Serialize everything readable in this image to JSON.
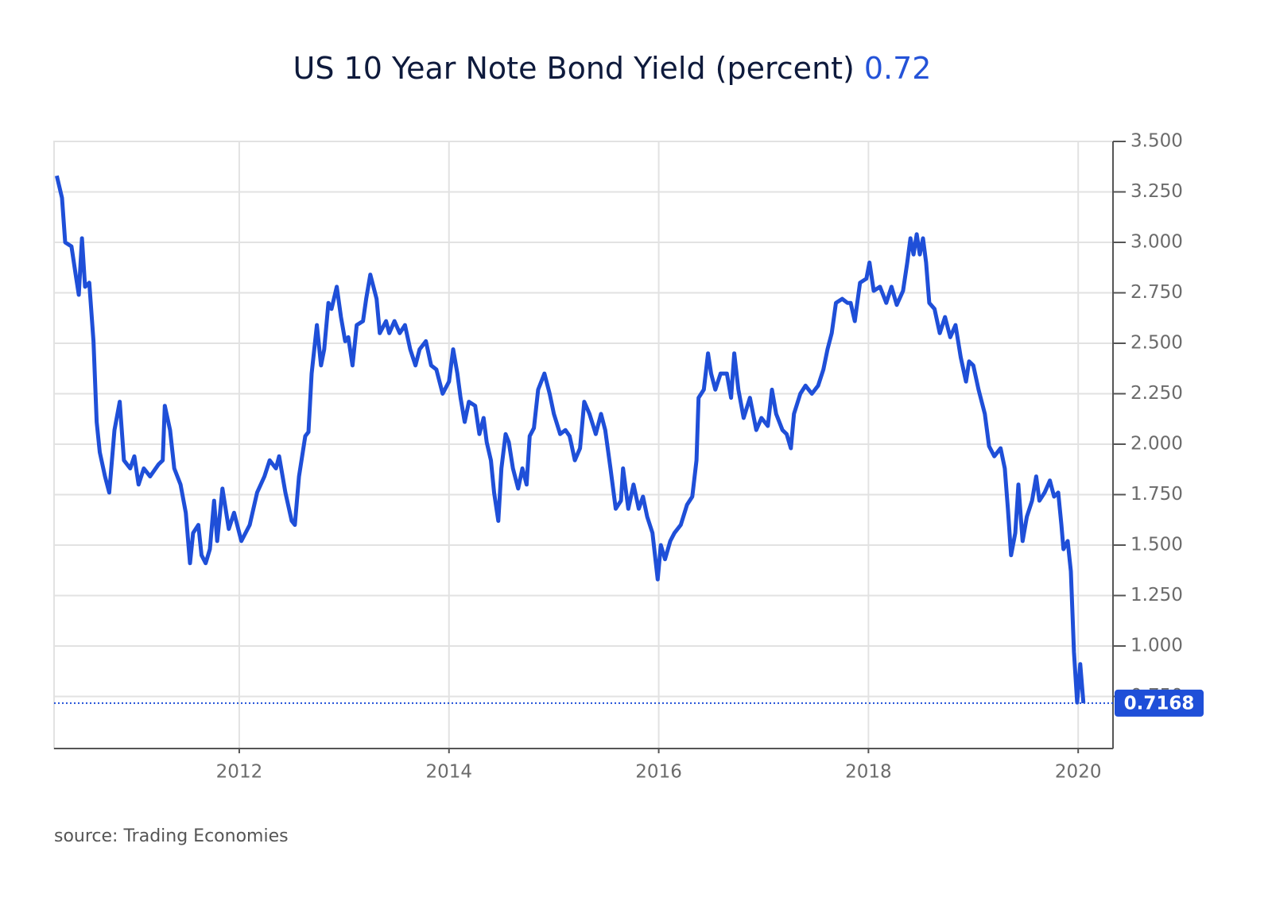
{
  "chart_data": {
    "type": "line",
    "title": "US 10 Year Note Bond Yield (percent)",
    "title_value": 0.72,
    "source": "source: Trading Economies",
    "color": "#1f4fd8",
    "grid": true,
    "xlim": [
      2010.234,
      2020.332
    ],
    "xticks": [
      2012,
      2014,
      2016,
      2018,
      2020
    ],
    "ylim": [
      0.492,
      3.5
    ],
    "yticks": [
      {
        "value": 0.75,
        "label": "0.750"
      },
      {
        "value": 1,
        "label": "1.000"
      },
      {
        "value": 1.25,
        "label": "1.250"
      },
      {
        "value": 1.5,
        "label": "1.500"
      },
      {
        "value": 1.75,
        "label": "1.750"
      },
      {
        "value": 2,
        "label": "2.000"
      },
      {
        "value": 2.25,
        "label": "2.250"
      },
      {
        "value": 2.5,
        "label": "2.500"
      },
      {
        "value": 2.75,
        "label": "2.750"
      },
      {
        "value": 3,
        "label": "3.000"
      },
      {
        "value": 3.25,
        "label": "3.250"
      },
      {
        "value": 3.5,
        "label": "3.500"
      }
    ],
    "x": [
      2010.26,
      2010.31,
      2010.34,
      2010.4,
      2010.44,
      2010.47,
      2010.5,
      2010.53,
      2010.57,
      2010.61,
      2010.64,
      2010.67,
      2010.72,
      2010.76,
      2010.81,
      2010.86,
      2010.9,
      2010.96,
      2011.0,
      2011.04,
      2011.09,
      2011.15,
      2011.23,
      2011.27,
      2011.29,
      2011.34,
      2011.38,
      2011.44,
      2011.49,
      2011.53,
      2011.56,
      2011.61,
      2011.64,
      2011.68,
      2011.72,
      2011.76,
      2011.79,
      2011.84,
      2011.9,
      2011.95,
      2012.02,
      2012.1,
      2012.17,
      2012.24,
      2012.29,
      2012.35,
      2012.38,
      2012.44,
      2012.5,
      2012.53,
      2012.57,
      2012.63,
      2012.66,
      2012.69,
      2012.74,
      2012.78,
      2012.81,
      2012.85,
      2012.88,
      2012.93,
      2012.97,
      2013.01,
      2013.04,
      2013.08,
      2013.12,
      2013.18,
      2013.21,
      2013.25,
      2013.31,
      2013.34,
      2013.4,
      2013.43,
      2013.48,
      2013.53,
      2013.58,
      2013.63,
      2013.68,
      2013.72,
      2013.78,
      2013.83,
      2013.88,
      2013.94,
      2014.0,
      2014.04,
      2014.08,
      2014.11,
      2014.15,
      2014.19,
      2014.25,
      2014.29,
      2014.33,
      2014.36,
      2014.4,
      2014.43,
      2014.47,
      2014.5,
      2014.54,
      2014.57,
      2014.61,
      2014.66,
      2014.7,
      2014.74,
      2014.77,
      2014.81,
      2014.85,
      2014.91,
      2014.96,
      2015.0,
      2015.06,
      2015.11,
      2015.15,
      2015.2,
      2015.25,
      2015.29,
      2015.34,
      2015.4,
      2015.45,
      2015.49,
      2015.54,
      2015.59,
      2015.64,
      2015.66,
      2015.71,
      2015.76,
      2015.81,
      2015.85,
      2015.89,
      2015.94,
      2015.99,
      2016.02,
      2016.06,
      2016.11,
      2016.15,
      2016.21,
      2016.27,
      2016.32,
      2016.36,
      2016.38,
      2016.43,
      2016.47,
      2016.5,
      2016.54,
      2016.59,
      2016.65,
      2016.69,
      2016.72,
      2016.76,
      2016.81,
      2016.87,
      2016.93,
      2016.98,
      2017.04,
      2017.08,
      2017.12,
      2017.18,
      2017.22,
      2017.26,
      2017.29,
      2017.35,
      2017.4,
      2017.46,
      2017.52,
      2017.57,
      2017.61,
      2017.65,
      2017.69,
      2017.75,
      2017.8,
      2017.83,
      2017.87,
      2017.92,
      2017.98,
      2018.01,
      2018.05,
      2018.11,
      2018.17,
      2018.22,
      2018.27,
      2018.33,
      2018.37,
      2018.4,
      2018.43,
      2018.46,
      2018.49,
      2018.52,
      2018.55,
      2018.58,
      2018.63,
      2018.68,
      2018.73,
      2018.78,
      2018.83,
      2018.88,
      2018.93,
      2018.96,
      2019.0,
      2019.05,
      2019.11,
      2019.15,
      2019.2,
      2019.26,
      2019.3,
      2019.33,
      2019.36,
      2019.4,
      2019.43,
      2019.47,
      2019.51,
      2019.56,
      2019.6,
      2019.63,
      2019.68,
      2019.73,
      2019.77,
      2019.81,
      2019.84,
      2019.86,
      2019.9,
      2019.93,
      2019.96,
      2019.99,
      2020.02,
      2020.05
    ],
    "values": [
      3.33,
      3.22,
      3.0,
      2.98,
      2.84,
      2.74,
      3.02,
      2.78,
      2.8,
      2.51,
      2.11,
      1.96,
      1.84,
      1.76,
      2.07,
      2.21,
      1.92,
      1.88,
      1.94,
      1.8,
      1.88,
      1.84,
      1.9,
      1.92,
      2.19,
      2.07,
      1.88,
      1.8,
      1.66,
      1.41,
      1.56,
      1.6,
      1.45,
      1.41,
      1.48,
      1.72,
      1.52,
      1.78,
      1.58,
      1.66,
      1.52,
      1.6,
      1.76,
      1.84,
      1.92,
      1.88,
      1.94,
      1.76,
      1.62,
      1.6,
      1.84,
      2.04,
      2.06,
      2.35,
      2.59,
      2.39,
      2.47,
      2.7,
      2.67,
      2.78,
      2.63,
      2.51,
      2.53,
      2.39,
      2.59,
      2.61,
      2.72,
      2.84,
      2.72,
      2.55,
      2.61,
      2.55,
      2.61,
      2.55,
      2.59,
      2.47,
      2.39,
      2.47,
      2.51,
      2.39,
      2.37,
      2.25,
      2.31,
      2.47,
      2.35,
      2.23,
      2.11,
      2.21,
      2.19,
      2.05,
      2.13,
      2.01,
      1.92,
      1.76,
      1.62,
      1.88,
      2.05,
      2.01,
      1.88,
      1.78,
      1.88,
      1.8,
      2.04,
      2.08,
      2.27,
      2.35,
      2.25,
      2.15,
      2.05,
      2.07,
      2.04,
      1.92,
      1.98,
      2.21,
      2.15,
      2.05,
      2.15,
      2.07,
      1.88,
      1.68,
      1.72,
      1.88,
      1.68,
      1.8,
      1.68,
      1.74,
      1.64,
      1.56,
      1.33,
      1.5,
      1.43,
      1.52,
      1.56,
      1.6,
      1.7,
      1.74,
      1.92,
      2.23,
      2.27,
      2.45,
      2.35,
      2.27,
      2.35,
      2.35,
      2.23,
      2.45,
      2.27,
      2.13,
      2.23,
      2.07,
      2.13,
      2.09,
      2.27,
      2.15,
      2.07,
      2.05,
      1.98,
      2.15,
      2.25,
      2.29,
      2.25,
      2.29,
      2.37,
      2.47,
      2.55,
      2.7,
      2.72,
      2.7,
      2.7,
      2.61,
      2.8,
      2.82,
      2.9,
      2.76,
      2.78,
      2.7,
      2.78,
      2.69,
      2.76,
      2.9,
      3.02,
      2.94,
      3.04,
      2.94,
      3.02,
      2.9,
      2.7,
      2.67,
      2.55,
      2.63,
      2.53,
      2.59,
      2.43,
      2.31,
      2.41,
      2.39,
      2.27,
      2.15,
      1.99,
      1.94,
      1.98,
      1.88,
      1.68,
      1.45,
      1.56,
      1.8,
      1.52,
      1.64,
      1.72,
      1.84,
      1.72,
      1.76,
      1.82,
      1.74,
      1.76,
      1.6,
      1.48,
      1.52,
      1.37,
      0.97,
      0.72,
      0.91,
      0.7168
    ]
  }
}
